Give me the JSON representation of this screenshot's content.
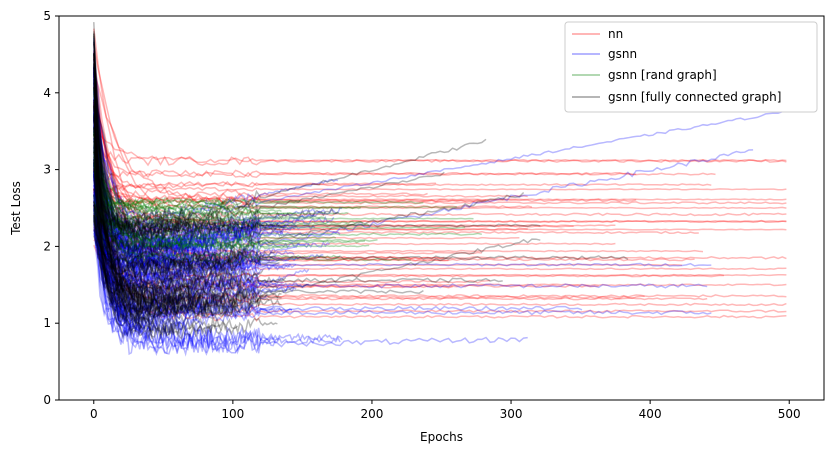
{
  "chart_data": {
    "type": "line",
    "title": "",
    "xlabel": "Epochs",
    "ylabel": "Test Loss",
    "xlim": [
      -25,
      525
    ],
    "ylim": [
      0,
      5
    ],
    "xticks": [
      0,
      100,
      200,
      300,
      400,
      500
    ],
    "yticks": [
      0,
      1,
      2,
      3,
      4,
      5
    ],
    "grid": false,
    "legend_position": "top-right",
    "series": [
      {
        "name": "nn",
        "color": "#ff0000",
        "alpha": 0.28,
        "curves": 45,
        "max_epoch": 500,
        "end_range": [
          1.0,
          3.4
        ],
        "start_range": [
          2.0,
          4.8
        ],
        "convergence_epoch": 80,
        "min_trend": 0.2
      },
      {
        "name": "gsnn",
        "color": "#0000ff",
        "alpha": 0.28,
        "curves": 110,
        "max_epoch": 500,
        "end_range": [
          0.6,
          2.3
        ],
        "start_range": [
          2.2,
          4.6
        ],
        "convergence_epoch": 40,
        "min_trend": 0.6
      },
      {
        "name": "gsnn [rand graph]",
        "color": "#008000",
        "alpha": 0.3,
        "curves": 35,
        "max_epoch": 300,
        "end_range": [
          1.8,
          2.6
        ],
        "start_range": [
          2.2,
          4.2
        ],
        "convergence_epoch": 40,
        "min_trend": 0.8
      },
      {
        "name": "gsnn [fully connected graph]",
        "color": "#000000",
        "alpha": 0.28,
        "curves": 75,
        "max_epoch": 390,
        "end_range": [
          0.8,
          2.3
        ],
        "start_range": [
          2.1,
          4.9
        ],
        "convergence_epoch": 30,
        "min_trend": 0.6
      }
    ],
    "legend": [
      "nn",
      "gsnn",
      "gsnn [rand graph]",
      "gsnn [fully connected graph]"
    ]
  }
}
